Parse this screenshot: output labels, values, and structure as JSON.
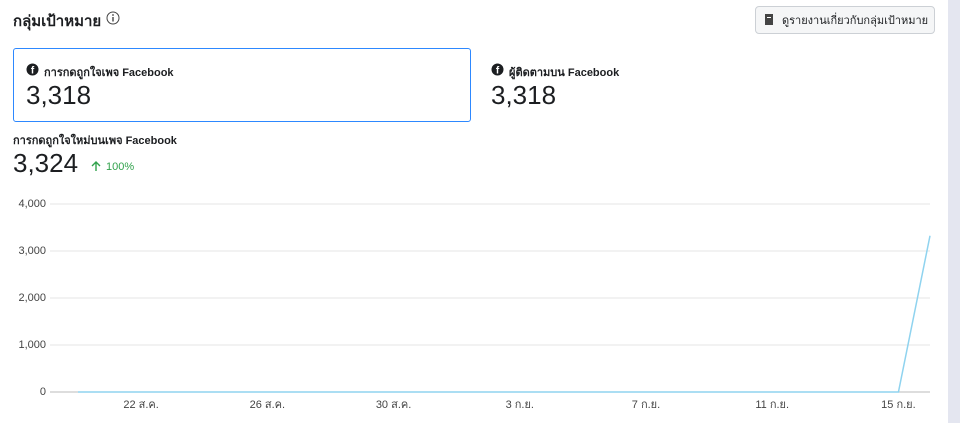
{
  "header": {
    "title": "กลุ่มเป้าหมาย",
    "button": "ดูรายงานเกี่ยวกับกลุ่มเป้าหมาย"
  },
  "cards": [
    {
      "label": "การกดถูกใจเพจ Facebook",
      "value": "3,318"
    },
    {
      "label": "ผู้ติดตามบน Facebook",
      "value": "3,318"
    }
  ],
  "metric": {
    "label": "การกดถูกใจใหม่บนเพจ Facebook",
    "value": "3,324",
    "change": "100%"
  },
  "chart_data": {
    "type": "line",
    "categories": [
      null,
      null,
      "22 ส.ค.",
      null,
      null,
      null,
      "26 ส.ค.",
      null,
      null,
      null,
      "30 ส.ค.",
      null,
      null,
      null,
      "3 ก.ย.",
      null,
      null,
      null,
      "7 ก.ย.",
      null,
      null,
      null,
      "11 ก.ย.",
      null,
      null,
      null,
      "15 ก.ย.",
      null
    ],
    "values": [
      0,
      0,
      0,
      0,
      0,
      0,
      0,
      0,
      0,
      0,
      0,
      0,
      0,
      0,
      0,
      0,
      0,
      0,
      0,
      0,
      0,
      0,
      0,
      0,
      0,
      0,
      0,
      3324
    ],
    "color": "#8fd3ef",
    "ylim": [
      0,
      4000
    ],
    "yticks": [
      0,
      {
        "value": 1000,
        "label": "1,000"
      },
      {
        "value": 2000,
        "label": "2,000"
      },
      {
        "value": 3000,
        "label": "3,000"
      },
      {
        "value": 4000,
        "label": "4,000"
      }
    ],
    "grid": true
  }
}
